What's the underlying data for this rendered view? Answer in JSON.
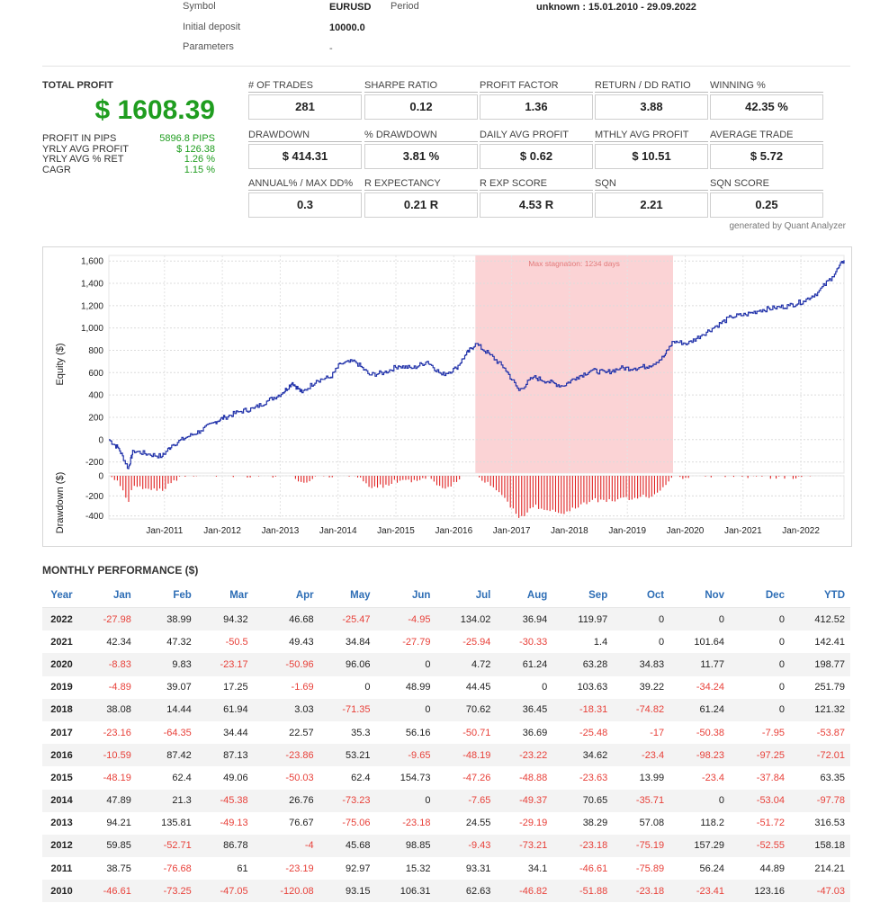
{
  "header": {
    "symbol_label": "Symbol",
    "symbol_value": "EURUSD",
    "period_label": "Period",
    "period_value": "unknown : 15.01.2010 - 29.09.2022",
    "deposit_label": "Initial deposit",
    "deposit_value": "10000.0",
    "params_label": "Parameters",
    "params_value": "-"
  },
  "summary": {
    "title": "TOTAL PROFIT",
    "total": "$ 1608.39",
    "rows": [
      {
        "k": "PROFIT IN PIPS",
        "v": "5896.8 PIPS"
      },
      {
        "k": "YRLY AVG PROFIT",
        "v": "$ 126.38"
      },
      {
        "k": "YRLY AVG % RET",
        "v": "1.26 %"
      },
      {
        "k": "CAGR",
        "v": "1.15 %"
      }
    ]
  },
  "stats": [
    {
      "label": "# OF TRADES",
      "value": "281"
    },
    {
      "label": "SHARPE RATIO",
      "value": "0.12"
    },
    {
      "label": "PROFIT FACTOR",
      "value": "1.36"
    },
    {
      "label": "RETURN / DD RATIO",
      "value": "3.88"
    },
    {
      "label": "WINNING %",
      "value": "42.35 %"
    },
    {
      "label": "DRAWDOWN",
      "value": "$ 414.31"
    },
    {
      "label": "% DRAWDOWN",
      "value": "3.81 %"
    },
    {
      "label": "DAILY AVG PROFIT",
      "value": "$ 0.62"
    },
    {
      "label": "MTHLY AVG PROFIT",
      "value": "$ 10.51"
    },
    {
      "label": "AVERAGE TRADE",
      "value": "$ 5.72"
    },
    {
      "label": "ANNUAL% / MAX DD%",
      "value": "0.3"
    },
    {
      "label": "R EXPECTANCY",
      "value": "0.21 R"
    },
    {
      "label": "R EXP SCORE",
      "value": "4.53 R"
    },
    {
      "label": "SQN",
      "value": "2.21"
    },
    {
      "label": "SQN SCORE",
      "value": "0.25"
    }
  ],
  "generated_by": "generated by Quant Analyzer",
  "colors": {
    "equity": "#2233aa",
    "drawdown": "#e02020",
    "stagnation": "#fbd3d5",
    "positive": "#1f9d1f",
    "negative": "#e8413a",
    "header_blue": "#2d6db5"
  },
  "chart_data": {
    "type": "line",
    "ylabel": "Equity ($)",
    "ylim": [
      -300,
      1650
    ],
    "yticks": [
      "1,600",
      "1,400",
      "1,200",
      "1,000",
      "800",
      "600",
      "400",
      "200",
      "0",
      "-200"
    ],
    "xticks": [
      "Jan-2011",
      "Jan-2012",
      "Jan-2013",
      "Jan-2014",
      "Jan-2015",
      "Jan-2016",
      "Jan-2017",
      "Jan-2018",
      "Jan-2019",
      "Jan-2020",
      "Jan-2021",
      "Jan-2022"
    ],
    "annotation": "Max stagnation: 1234 days",
    "stagnation_period": [
      "2016-05",
      "2019-10"
    ],
    "series": [
      {
        "name": "Equity",
        "points": [
          [
            "2010-01",
            0
          ],
          [
            "2010-03",
            -80
          ],
          [
            "2010-05",
            -260
          ],
          [
            "2010-06",
            -100
          ],
          [
            "2010-09",
            -130
          ],
          [
            "2010-12",
            -150
          ],
          [
            "2011-02",
            -50
          ],
          [
            "2011-05",
            20
          ],
          [
            "2011-08",
            80
          ],
          [
            "2011-11",
            160
          ],
          [
            "2012-01",
            200
          ],
          [
            "2012-04",
            250
          ],
          [
            "2012-07",
            280
          ],
          [
            "2012-10",
            350
          ],
          [
            "2013-01",
            420
          ],
          [
            "2013-03",
            510
          ],
          [
            "2013-05",
            420
          ],
          [
            "2013-08",
            530
          ],
          [
            "2013-11",
            560
          ],
          [
            "2014-01",
            680
          ],
          [
            "2014-04",
            700
          ],
          [
            "2014-07",
            580
          ],
          [
            "2014-10",
            600
          ],
          [
            "2015-01",
            660
          ],
          [
            "2015-04",
            640
          ],
          [
            "2015-07",
            700
          ],
          [
            "2015-10",
            580
          ],
          [
            "2016-01",
            640
          ],
          [
            "2016-03",
            760
          ],
          [
            "2016-05",
            860
          ],
          [
            "2016-08",
            760
          ],
          [
            "2016-11",
            640
          ],
          [
            "2017-02",
            440
          ],
          [
            "2017-05",
            560
          ],
          [
            "2017-08",
            520
          ],
          [
            "2017-11",
            480
          ],
          [
            "2018-02",
            560
          ],
          [
            "2018-05",
            620
          ],
          [
            "2018-08",
            600
          ],
          [
            "2018-11",
            640
          ],
          [
            "2019-02",
            640
          ],
          [
            "2019-05",
            660
          ],
          [
            "2019-08",
            740
          ],
          [
            "2019-10",
            880
          ],
          [
            "2020-01",
            860
          ],
          [
            "2020-04",
            940
          ],
          [
            "2020-07",
            1020
          ],
          [
            "2020-10",
            1100
          ],
          [
            "2021-01",
            1120
          ],
          [
            "2021-04",
            1160
          ],
          [
            "2021-07",
            1180
          ],
          [
            "2021-10",
            1200
          ],
          [
            "2022-01",
            1240
          ],
          [
            "2022-04",
            1320
          ],
          [
            "2022-07",
            1460
          ],
          [
            "2022-09",
            1608.39
          ]
        ]
      }
    ],
    "drawdown": {
      "ylabel": "Drawdown ($)",
      "ylim": [
        -430,
        0
      ],
      "yticks": [
        "0",
        "-200",
        "-400"
      ]
    }
  },
  "monthly": {
    "title": "MONTHLY PERFORMANCE ($)",
    "headers": [
      "Year",
      "Jan",
      "Feb",
      "Mar",
      "Apr",
      "May",
      "Jun",
      "Jul",
      "Aug",
      "Sep",
      "Oct",
      "Nov",
      "Dec",
      "YTD"
    ],
    "rows": [
      [
        "2022",
        "-27.98",
        "38.99",
        "94.32",
        "46.68",
        "-25.47",
        "-4.95",
        "134.02",
        "36.94",
        "119.97",
        "0",
        "0",
        "0",
        "412.52"
      ],
      [
        "2021",
        "42.34",
        "47.32",
        "-50.5",
        "49.43",
        "34.84",
        "-27.79",
        "-25.94",
        "-30.33",
        "1.4",
        "0",
        "101.64",
        "0",
        "142.41"
      ],
      [
        "2020",
        "-8.83",
        "9.83",
        "-23.17",
        "-50.96",
        "96.06",
        "0",
        "4.72",
        "61.24",
        "63.28",
        "34.83",
        "11.77",
        "0",
        "198.77"
      ],
      [
        "2019",
        "-4.89",
        "39.07",
        "17.25",
        "-1.69",
        "0",
        "48.99",
        "44.45",
        "0",
        "103.63",
        "39.22",
        "-34.24",
        "0",
        "251.79"
      ],
      [
        "2018",
        "38.08",
        "14.44",
        "61.94",
        "3.03",
        "-71.35",
        "0",
        "70.62",
        "36.45",
        "-18.31",
        "-74.82",
        "61.24",
        "0",
        "121.32"
      ],
      [
        "2017",
        "-23.16",
        "-64.35",
        "34.44",
        "22.57",
        "35.3",
        "56.16",
        "-50.71",
        "36.69",
        "-25.48",
        "-17",
        "-50.38",
        "-7.95",
        "-53.87"
      ],
      [
        "2016",
        "-10.59",
        "87.42",
        "87.13",
        "-23.86",
        "53.21",
        "-9.65",
        "-48.19",
        "-23.22",
        "34.62",
        "-23.4",
        "-98.23",
        "-97.25",
        "-72.01"
      ],
      [
        "2015",
        "-48.19",
        "62.4",
        "49.06",
        "-50.03",
        "62.4",
        "154.73",
        "-47.26",
        "-48.88",
        "-23.63",
        "13.99",
        "-23.4",
        "-37.84",
        "63.35"
      ],
      [
        "2014",
        "47.89",
        "21.3",
        "-45.38",
        "26.76",
        "-73.23",
        "0",
        "-7.65",
        "-49.37",
        "70.65",
        "-35.71",
        "0",
        "-53.04",
        "-97.78"
      ],
      [
        "2013",
        "94.21",
        "135.81",
        "-49.13",
        "76.67",
        "-75.06",
        "-23.18",
        "24.55",
        "-29.19",
        "38.29",
        "57.08",
        "118.2",
        "-51.72",
        "316.53"
      ],
      [
        "2012",
        "59.85",
        "-52.71",
        "86.78",
        "-4",
        "45.68",
        "98.85",
        "-9.43",
        "-73.21",
        "-23.18",
        "-75.19",
        "157.29",
        "-52.55",
        "158.18"
      ],
      [
        "2011",
        "38.75",
        "-76.68",
        "61",
        "-23.19",
        "92.97",
        "15.32",
        "93.31",
        "34.1",
        "-46.61",
        "-75.89",
        "56.24",
        "44.89",
        "214.21"
      ],
      [
        "2010",
        "-46.61",
        "-73.25",
        "-47.05",
        "-120.08",
        "93.15",
        "106.31",
        "62.63",
        "-46.82",
        "-51.88",
        "-23.18",
        "-23.41",
        "123.16",
        "-47.03"
      ]
    ]
  }
}
